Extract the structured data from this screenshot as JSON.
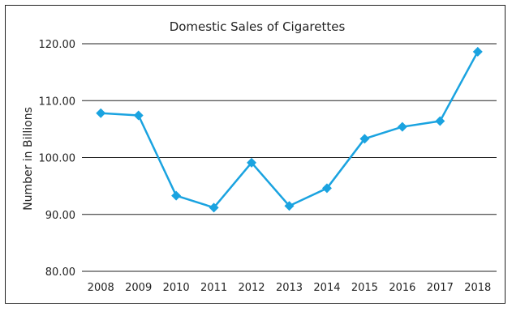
{
  "chart_data": {
    "type": "line",
    "title": "Domestic Sales of Cigarettes",
    "xlabel": "",
    "ylabel": "Number in Billions",
    "categories": [
      "2008",
      "2009",
      "2010",
      "2011",
      "2012",
      "2013",
      "2014",
      "2015",
      "2016",
      "2017",
      "2018"
    ],
    "series": [
      {
        "values": [
          107.8,
          107.4,
          93.3,
          91.2,
          99.1,
          91.5,
          94.6,
          103.3,
          105.4,
          106.4,
          118.6
        ]
      }
    ],
    "ylim": [
      80,
      120
    ],
    "yticks": [
      "80.00",
      "90.00",
      "100.00",
      "110.00",
      "120.00"
    ],
    "grid": true,
    "line_color": "#1aa3e0",
    "marker": "diamond"
  }
}
